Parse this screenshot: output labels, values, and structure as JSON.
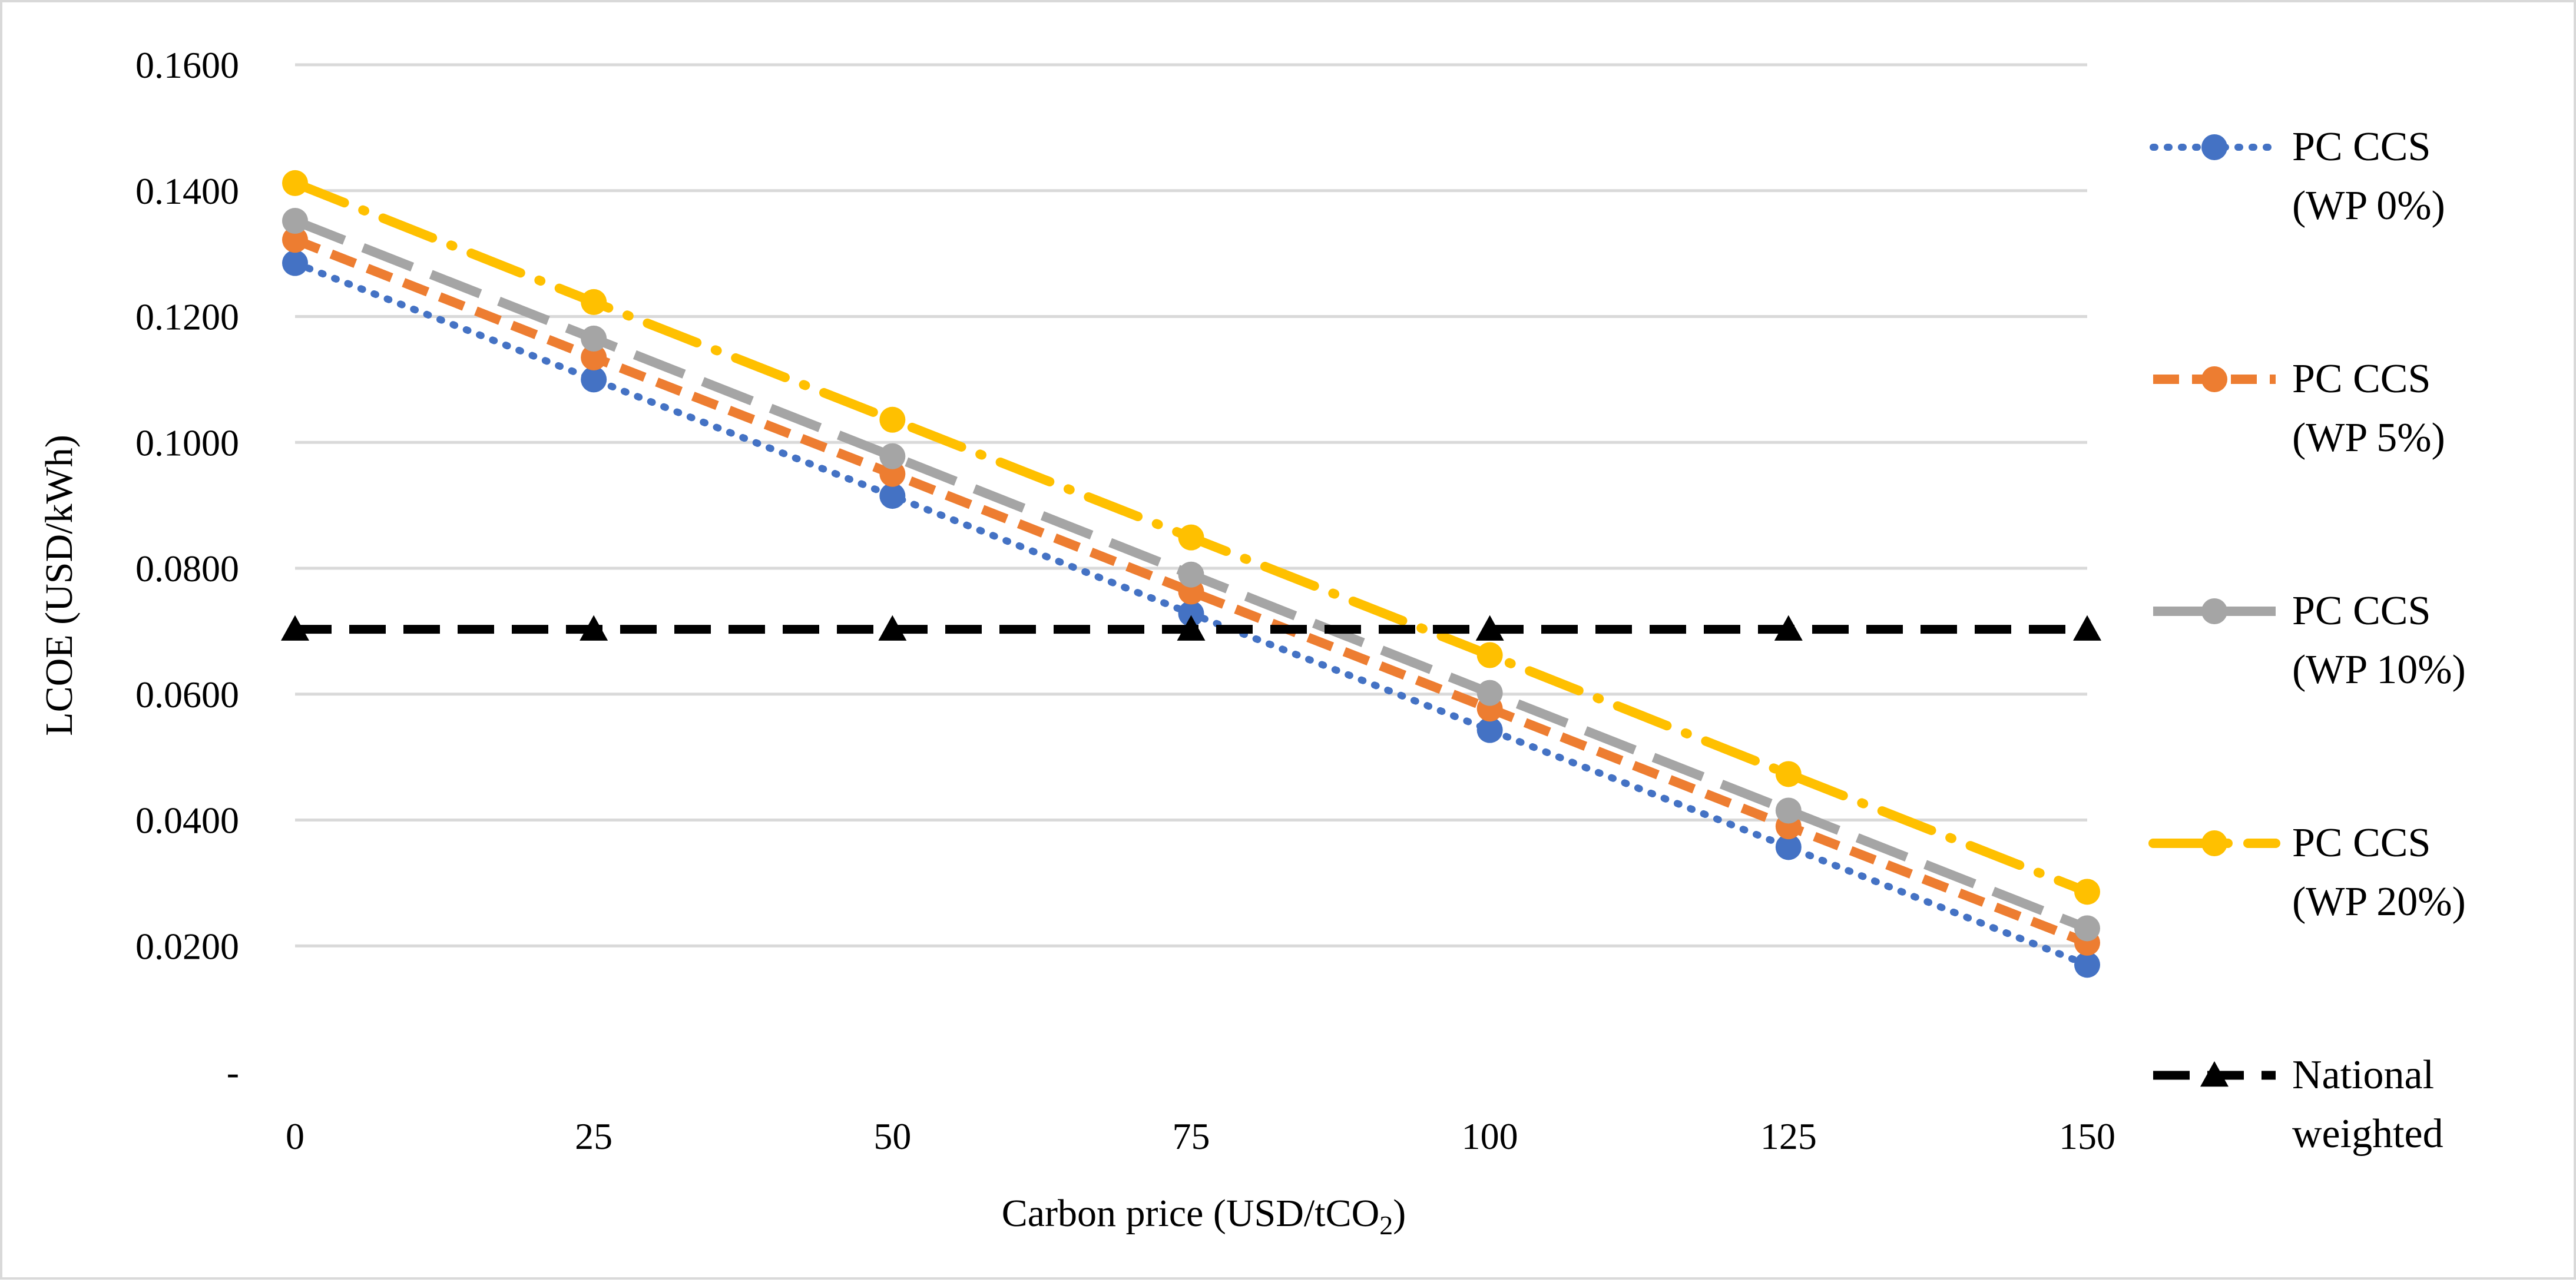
{
  "chart_data": {
    "type": "line",
    "title": "",
    "xlabel_main": "Carbon price (USD/tCO",
    "xlabel_sub": "2",
    "xlabel_end": ")",
    "ylabel": "LCOE (USD/kWh)",
    "x": [
      0,
      25,
      50,
      75,
      100,
      125,
      150
    ],
    "x_tick_labels": [
      "0",
      "25",
      "50",
      "75",
      "100",
      "125",
      "150"
    ],
    "ylim": [
      0,
      0.16
    ],
    "y_ticks": [
      0,
      0.02,
      0.04,
      0.06,
      0.08,
      0.1,
      0.12,
      0.14,
      0.16
    ],
    "y_tick_labels": [
      "-",
      "0.0200",
      "0.0400",
      "0.0600",
      "0.0800",
      "0.1000",
      "0.1200",
      "0.1400",
      "0.1600"
    ],
    "grid": true,
    "legend_position": "right",
    "series": [
      {
        "name_line1": "PC CCS",
        "name_line2": "(WP 0%)",
        "color": "#4472C4",
        "dash": "dotted",
        "marker": "circle",
        "values": [
          0.1285,
          0.11,
          0.0915,
          0.0728,
          0.0543,
          0.0357,
          0.017
        ]
      },
      {
        "name_line1": "PC CCS",
        "name_line2": "(WP 5%)",
        "color": "#ED7D31",
        "dash": "dashed",
        "marker": "circle",
        "values": [
          0.1322,
          0.1135,
          0.095,
          0.0763,
          0.0577,
          0.039,
          0.0205
        ]
      },
      {
        "name_line1": "PC CCS",
        "name_line2": "(WP 10%)",
        "color": "#A5A5A5",
        "dash": "longdash",
        "marker": "circle",
        "values": [
          0.1352,
          0.1165,
          0.0978,
          0.079,
          0.0602,
          0.0415,
          0.0228
        ]
      },
      {
        "name_line1": "PC CCS",
        "name_line2": "(WP 20%)",
        "color": "#FFC000",
        "dash": "dashdot",
        "marker": "circle",
        "values": [
          0.1412,
          0.1223,
          0.1036,
          0.0849,
          0.0662,
          0.0473,
          0.0286
        ]
      },
      {
        "name_line1": "National",
        "name_line2": "weighted",
        "color": "#000000",
        "dash": "heavydash",
        "marker": "triangle",
        "values": [
          0.0703,
          0.0703,
          0.0703,
          0.0703,
          0.0703,
          0.0703,
          0.0703
        ]
      }
    ]
  }
}
